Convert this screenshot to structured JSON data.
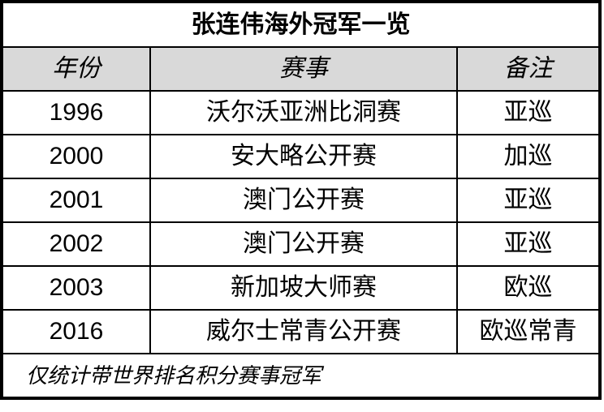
{
  "title": "张连伟海外冠军一览",
  "headers": [
    "年份",
    "赛事",
    "备注"
  ],
  "rows": [
    [
      "1996",
      "沃尔沃亚洲比洞赛",
      "亚巡"
    ],
    [
      "2000",
      "安大略公开赛",
      "加巡"
    ],
    [
      "2001",
      "澳门公开赛",
      "亚巡"
    ],
    [
      "2002",
      "澳门公开赛",
      "亚巡"
    ],
    [
      "2003",
      "新加坡大师赛",
      "欧巡"
    ],
    [
      "2016",
      "威尔士常青公开赛",
      "欧巡常青"
    ]
  ],
  "footnote": "仅统计带世界排名积分赛事冠军",
  "colors": {
    "header_bg": "#d9d9d9",
    "border": "#000000"
  }
}
